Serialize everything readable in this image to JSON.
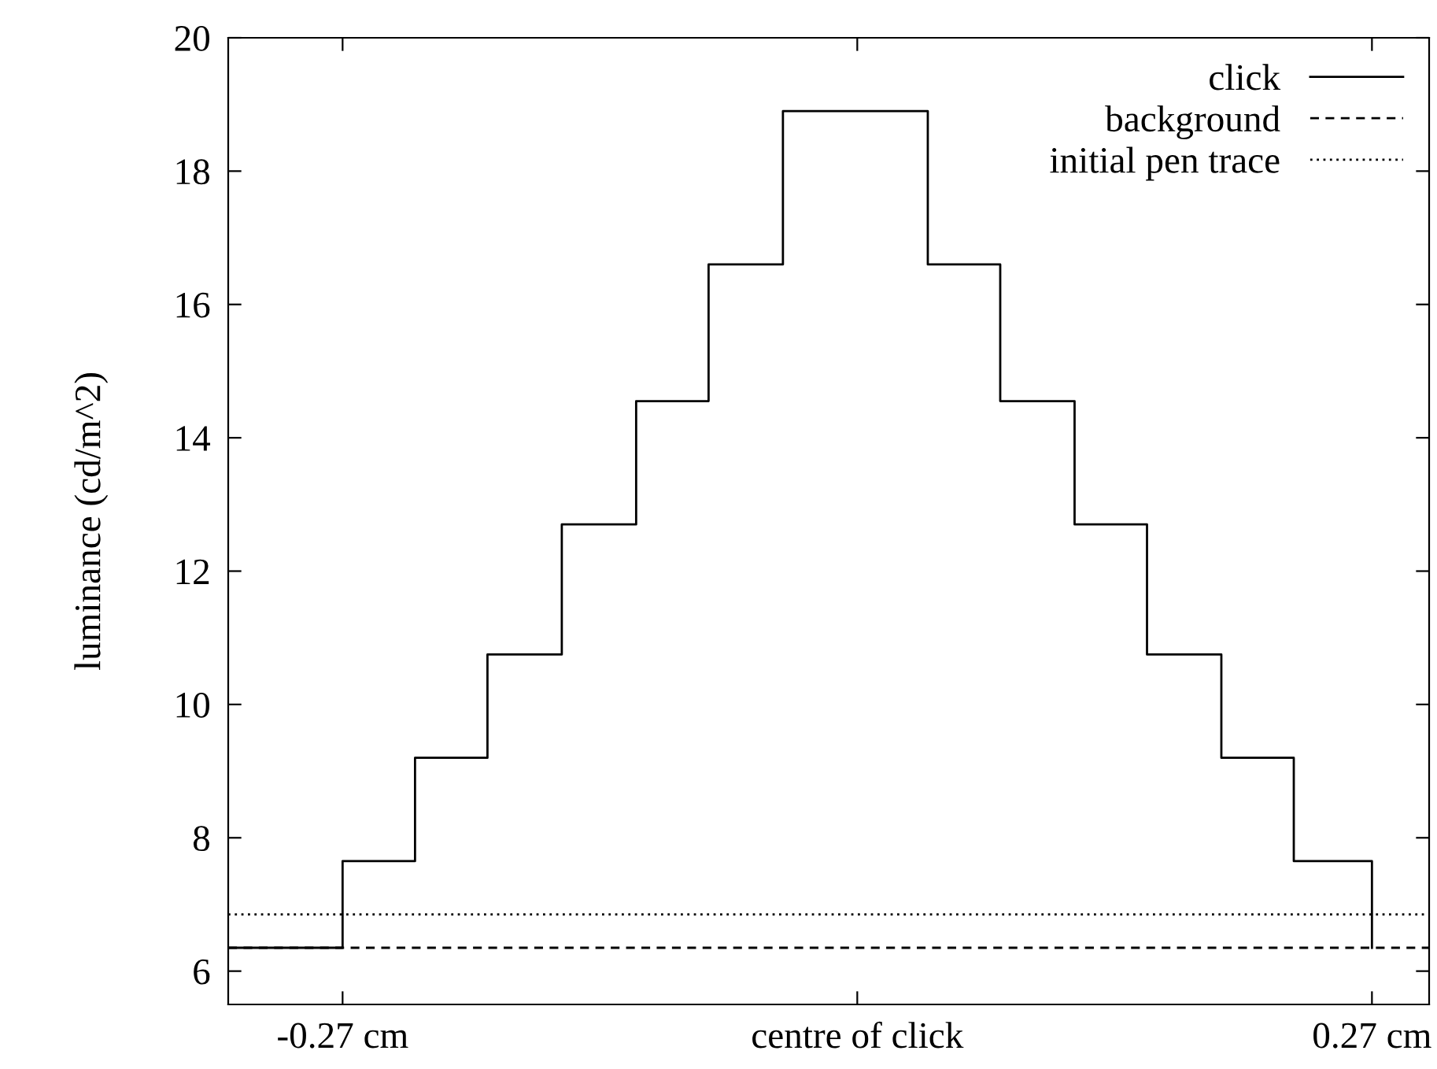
{
  "chart_data": {
    "type": "step",
    "ylabel": "luminance (cd/m^2)",
    "xlim": [
      -0.33,
      0.3
    ],
    "ylim": [
      5.5,
      20
    ],
    "xticks": [
      {
        "value": -0.27,
        "label": "-0.27 cm"
      },
      {
        "value": 0,
        "label": "centre of click"
      },
      {
        "value": 0.27,
        "label": "0.27 cm"
      }
    ],
    "yticks": [
      6,
      8,
      10,
      12,
      14,
      16,
      18,
      20
    ],
    "grid": false,
    "legend": "top right",
    "series": [
      {
        "name": "click",
        "color": "#000000",
        "line_style": "solid",
        "x": [
          -0.33,
          -0.27,
          -0.232,
          -0.194,
          -0.155,
          -0.116,
          -0.078,
          -0.039,
          0.037,
          0.075,
          0.114,
          0.152,
          0.191,
          0.229,
          0.27
        ],
        "values": [
          6.35,
          7.65,
          9.2,
          10.75,
          12.7,
          14.55,
          16.6,
          18.9,
          16.6,
          14.55,
          12.7,
          10.75,
          9.2,
          7.65,
          6.35
        ]
      },
      {
        "name": "background",
        "type": "line",
        "color": "#000000",
        "line_style": "dashed",
        "x": [
          -0.33,
          0.3
        ],
        "values": [
          6.35,
          6.35
        ]
      },
      {
        "name": "initial pen trace",
        "type": "line",
        "color": "#000000",
        "line_style": "dotted",
        "x": [
          -0.33,
          0.3
        ],
        "values": [
          6.85,
          6.85
        ]
      }
    ]
  }
}
